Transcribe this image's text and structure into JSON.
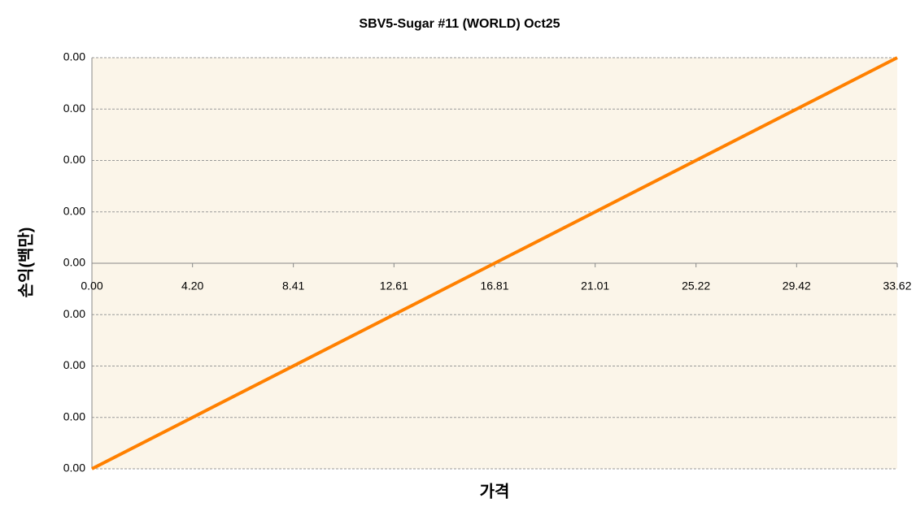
{
  "chart_data": {
    "type": "line",
    "title": "SBV5-Sugar #11 (WORLD) Oct25",
    "x_label": "가격",
    "y_label": "손익(백만)",
    "x": [
      0,
      33.62
    ],
    "series": [
      {
        "name": "손익",
        "color": "#ff8000",
        "values": [
          -0.004,
          0.004
        ]
      }
    ],
    "xlim": [
      0,
      33.62
    ],
    "xticks": [
      {
        "value": 0,
        "label": "0.00"
      },
      {
        "value": 4.2,
        "label": "4.20"
      },
      8.41,
      12.61,
      16.81,
      21.01,
      25.22,
      29.42,
      33.62
    ],
    "ylim": [
      -0.004,
      0.004
    ],
    "yticks": [
      {
        "value": -0.004,
        "label": "0.00"
      },
      {
        "value": -0.003,
        "label": "0.00"
      },
      {
        "value": -0.002,
        "label": "0.00"
      },
      {
        "value": -0.001,
        "label": "0.00"
      },
      {
        "value": 0,
        "label": "0.00"
      },
      {
        "value": 0.001,
        "label": "0.00"
      },
      {
        "value": 0.002,
        "label": "0.00"
      },
      {
        "value": 0.003,
        "label": "0.00"
      },
      {
        "value": 0.004,
        "label": "0.00"
      }
    ],
    "grid": true,
    "plot_background": "#fbf5e9"
  }
}
